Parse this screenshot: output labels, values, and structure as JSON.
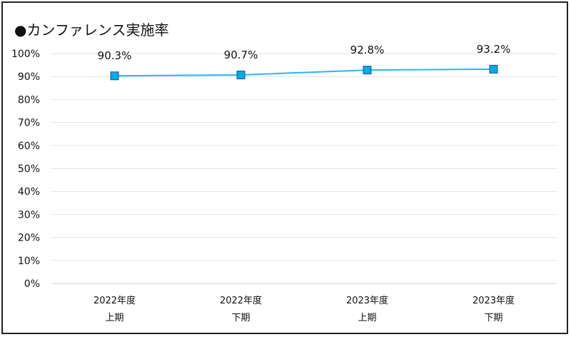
{
  "chart_data": {
    "type": "line",
    "title": "●カンファレンス実施率",
    "categories": [
      [
        "2022年度",
        "上期"
      ],
      [
        "2022年度",
        "下期"
      ],
      [
        "2023年度",
        "上期"
      ],
      [
        "2023年度",
        "下期"
      ]
    ],
    "series": [
      {
        "values": [
          90.3,
          90.7,
          92.8,
          93.2
        ],
        "data_labels": [
          "90.3%",
          "90.7%",
          "92.8%",
          "93.2%"
        ],
        "color": "#29B6F6",
        "marker_color": "#0EA5E9",
        "marker": "square"
      }
    ],
    "yticks": [
      "0%",
      "10%",
      "20%",
      "30%",
      "40%",
      "50%",
      "60%",
      "70%",
      "80%",
      "90%",
      "100%"
    ],
    "ylim": [
      0,
      100
    ],
    "grid": true,
    "legend": "none"
  }
}
